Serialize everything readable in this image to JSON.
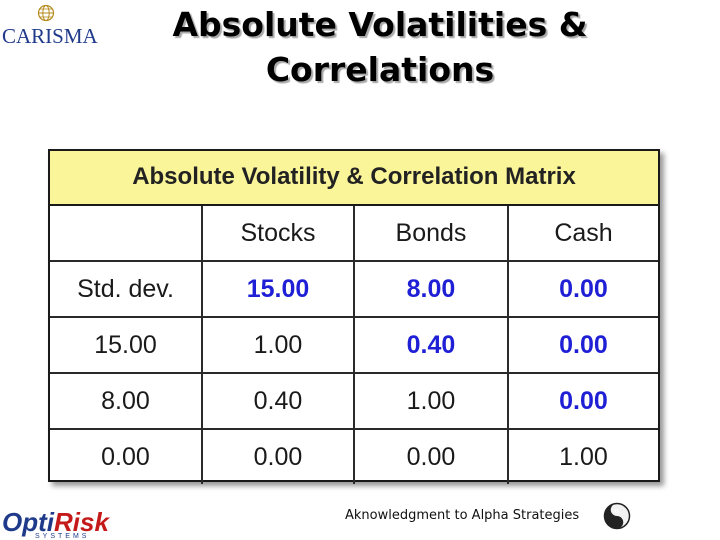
{
  "logos": {
    "top_left": "CARISMA",
    "bottom_left": {
      "opti": "Opti",
      "risk": "Risk",
      "sub": "SYSTEMS"
    }
  },
  "title": {
    "line1": "Absolute Volatilities &",
    "line2": "Correlations"
  },
  "matrix": {
    "header": "Absolute Volatility & Correlation Matrix",
    "columns": [
      "",
      "Stocks",
      "Bonds",
      "Cash"
    ],
    "rows": [
      [
        "Std. dev.",
        "15.00",
        "8.00",
        "0.00"
      ],
      [
        "15.00",
        "1.00",
        "0.40",
        "0.00"
      ],
      [
        "8.00",
        "0.40",
        "1.00",
        "0.00"
      ],
      [
        "0.00",
        "0.00",
        "0.00",
        "1.00"
      ]
    ]
  },
  "acknowledgment": "Aknowledgment to Alpha Strategies",
  "colors": {
    "header_bg": "#fbf59a",
    "highlight_blue": "#1f1fd6"
  },
  "icons": {
    "globe": "globe-icon",
    "alpha": "alpha-strategies-icon"
  }
}
